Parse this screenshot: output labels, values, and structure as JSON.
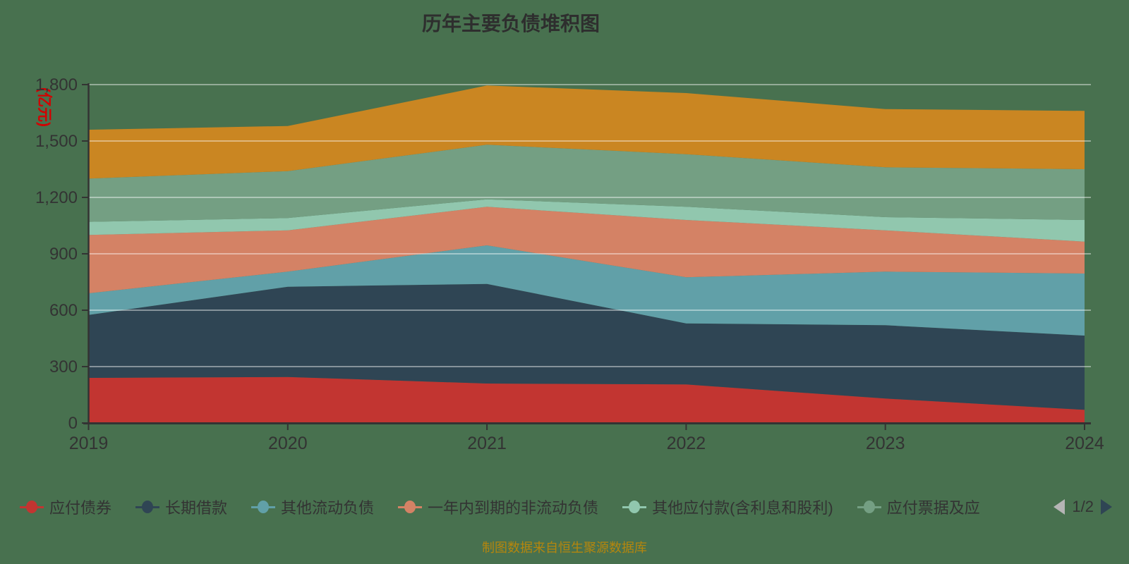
{
  "title": {
    "text": "历年主要负债堆积图"
  },
  "y_axis": {
    "unit": "(亿元)",
    "tick_labels": [
      "0",
      "300",
      "600",
      "900",
      "1,200",
      "1,500",
      "1,800"
    ]
  },
  "chart_data": {
    "type": "area",
    "stacked": true,
    "title": "历年主要负债堆积图",
    "x": [
      "2019",
      "2020",
      "2021",
      "2022",
      "2023",
      "2024"
    ],
    "series": [
      {
        "name": "应付债券",
        "color": "#c23531",
        "values": [
          240,
          245,
          210,
          205,
          130,
          70
        ]
      },
      {
        "name": "长期借款",
        "color": "#2f4554",
        "values": [
          335,
          480,
          530,
          325,
          390,
          395
        ]
      },
      {
        "name": "其他流动负债",
        "color": "#61a0a8",
        "values": [
          115,
          80,
          205,
          245,
          285,
          330
        ]
      },
      {
        "name": "一年内到期的非流动负债",
        "color": "#d48265",
        "values": [
          310,
          220,
          205,
          305,
          220,
          170
        ]
      },
      {
        "name": "其他应付款(含利息和股利)",
        "color": "#91c7ae",
        "values": [
          70,
          65,
          40,
          70,
          70,
          115
        ]
      },
      {
        "name": "应付票据及应",
        "color": "#749f83",
        "values": [
          230,
          250,
          290,
          280,
          265,
          270
        ]
      },
      {
        "name": "",
        "color": "#ca8622",
        "values": [
          260,
          240,
          315,
          325,
          310,
          310
        ]
      }
    ],
    "ylim": [
      0,
      1800
    ],
    "y_tick_step": 300,
    "grid": true,
    "legend_position": "bottom",
    "xlabel": "",
    "ylabel": "(亿元)"
  },
  "legend": {
    "visible_count": 6,
    "page_label": "1/2"
  },
  "source": {
    "text": "制图数据来自恒生聚源数据库"
  },
  "colors": {
    "background": "#48714F",
    "axis": "#333333",
    "gridline": "rgba(255,255,255,0.42)",
    "title_text": "#2e2e2e",
    "unit_text": "#d40000",
    "source_text": "#b5860d",
    "pager_prev": "#b5b5b5",
    "pager_next": "#2f4554"
  }
}
